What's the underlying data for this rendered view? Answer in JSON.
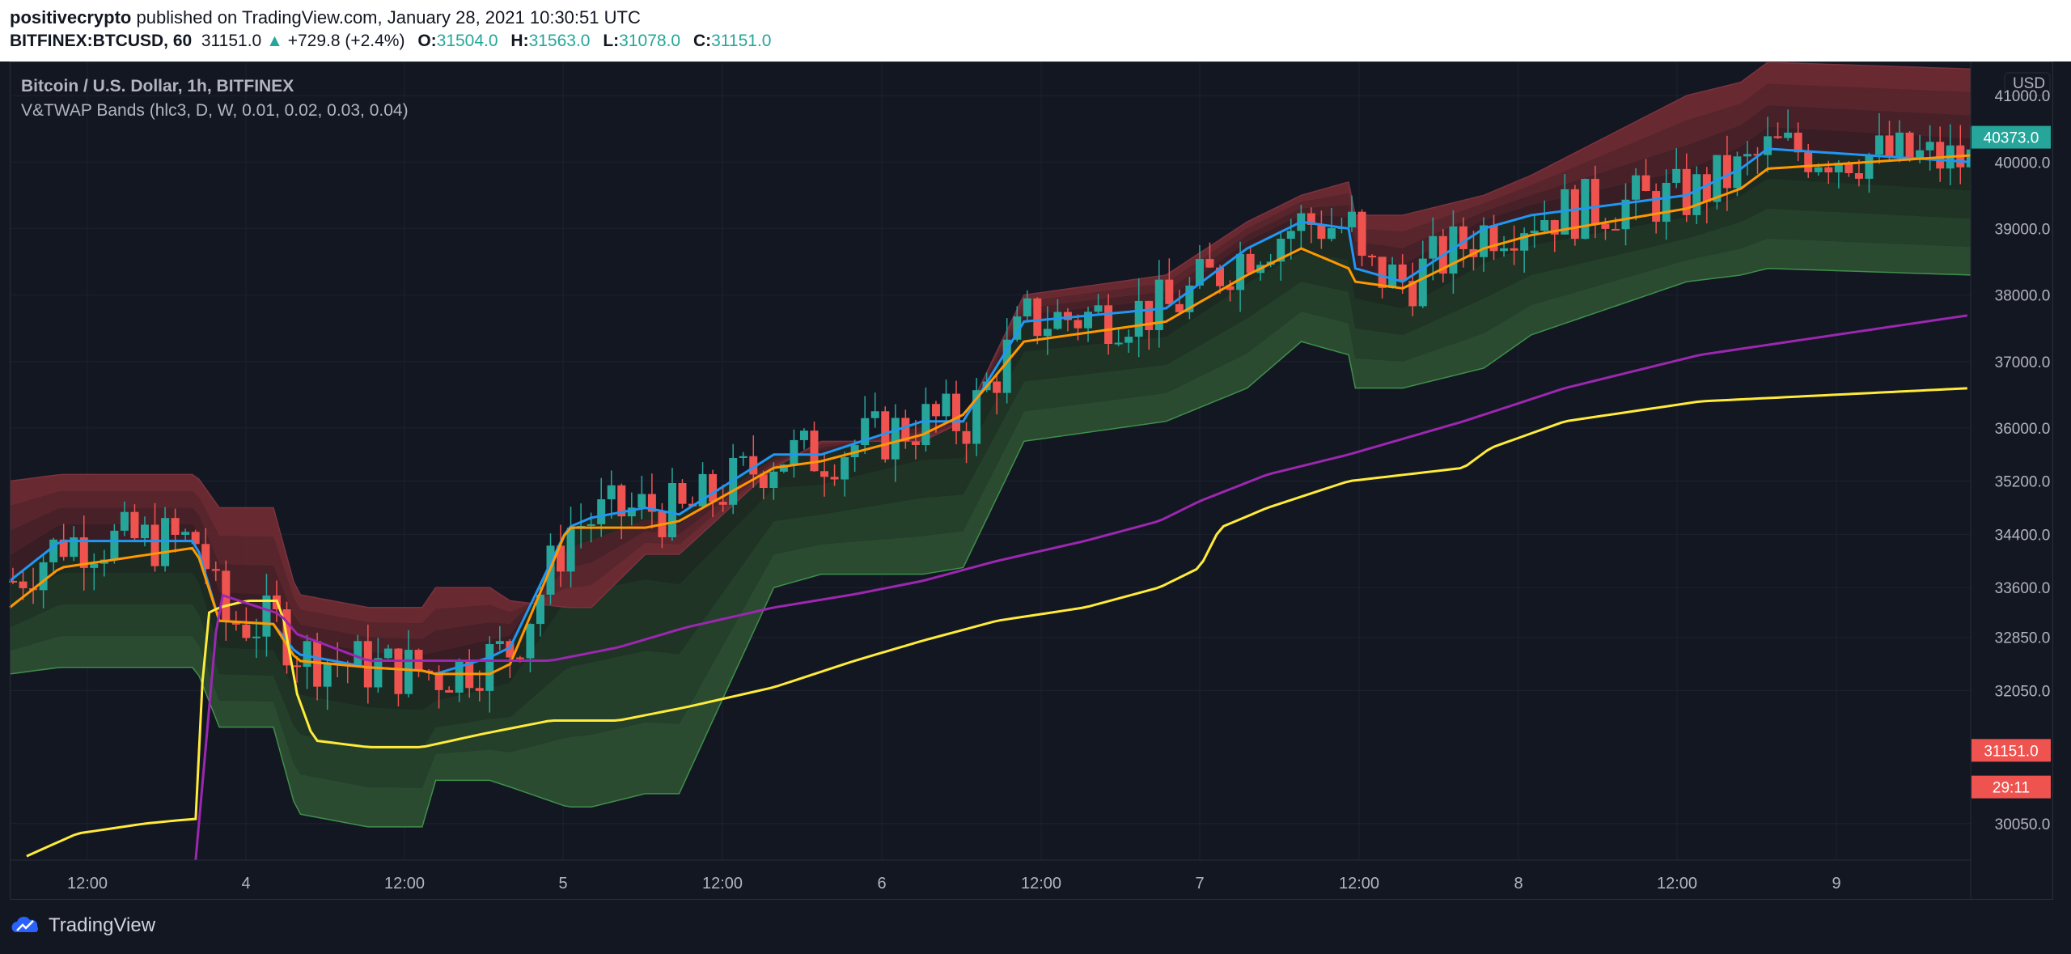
{
  "header": {
    "author": "positivecrypto",
    "published_text": "published on TradingView.com, January 28, 2021 10:30:51 UTC",
    "symbol": "BITFINEX:BTCUSD, 60",
    "last": "31151.0",
    "change_arrow": "▲",
    "change": "+729.8 (+2.4%)",
    "o_label": "O:",
    "o_value": "31504.0",
    "h_label": "H:",
    "h_value": "31563.0",
    "l_label": "L:",
    "l_value": "31078.0",
    "c_label": "C:",
    "c_value": "31151.0"
  },
  "legend": {
    "line1": "Bitcoin / U.S. Dollar, 1h, BITFINEX",
    "line2": "V&TWAP Bands (hlc3, D, W, 0.01, 0.02, 0.03, 0.04)"
  },
  "footer": {
    "brand": "TradingView"
  },
  "colors": {
    "background": "#131722",
    "up": "#26a69a",
    "down": "#ef5350",
    "vwap_blue": "#2196f3",
    "twap_orange": "#ff9800",
    "weekly_yellow": "#ffeb3b",
    "weekly_purple": "#9c27b0",
    "band_red": "#8b2e3a",
    "band_green": "#2e7d32"
  },
  "chart_data": {
    "type": "candlestick",
    "currency": "USD",
    "y_ticks": [
      "41000.0",
      "40000.0",
      "39000.0",
      "38000.0",
      "37000.0",
      "36000.0",
      "35200.0",
      "34400.0",
      "33600.0",
      "32850.0",
      "32050.0",
      "30050.0"
    ],
    "ylim": [
      29500,
      41500
    ],
    "x_ticks": [
      "12:00",
      "4",
      "12:00",
      "5",
      "12:00",
      "6",
      "12:00",
      "7",
      "12:00",
      "8",
      "12:00",
      "9"
    ],
    "price_labels": [
      {
        "text": "40373.0",
        "color": "#26a69a",
        "value": 40373
      },
      {
        "text": "31151.0",
        "color": "#ef5350",
        "value": 31151
      },
      {
        "text": "29:11",
        "color": "#ef5350",
        "value": 30600
      }
    ],
    "series": [
      {
        "name": "daily_vwap",
        "color": "#2196f3",
        "anchors": [
          [
            0,
            33700
          ],
          [
            15,
            34300
          ],
          [
            55,
            34300
          ],
          [
            62,
            33100
          ],
          [
            78,
            33050
          ],
          [
            85,
            32600
          ],
          [
            106,
            32400
          ],
          [
            122,
            32350
          ],
          [
            126,
            32300
          ],
          [
            142,
            32550
          ],
          [
            148,
            32700
          ],
          [
            165,
            34500
          ],
          [
            172,
            34650
          ],
          [
            188,
            34800
          ],
          [
            198,
            34700
          ],
          [
            226,
            35600
          ],
          [
            240,
            35600
          ],
          [
            270,
            36100
          ],
          [
            282,
            36100
          ],
          [
            300,
            37600
          ],
          [
            342,
            37800
          ],
          [
            366,
            38700
          ],
          [
            382,
            39100
          ],
          [
            396,
            39000
          ],
          [
            398,
            38400
          ],
          [
            412,
            38200
          ],
          [
            436,
            39000
          ],
          [
            450,
            39200
          ],
          [
            496,
            39500
          ],
          [
            512,
            39900
          ],
          [
            520,
            40200
          ],
          [
            580,
            40000
          ]
        ]
      },
      {
        "name": "daily_twap",
        "color": "#ff9800",
        "anchors": [
          [
            0,
            33300
          ],
          [
            15,
            33900
          ],
          [
            55,
            34200
          ],
          [
            62,
            33100
          ],
          [
            78,
            33050
          ],
          [
            85,
            32500
          ],
          [
            106,
            32400
          ],
          [
            122,
            32350
          ],
          [
            126,
            32300
          ],
          [
            142,
            32300
          ],
          [
            148,
            32450
          ],
          [
            165,
            34500
          ],
          [
            172,
            34500
          ],
          [
            188,
            34500
          ],
          [
            198,
            34600
          ],
          [
            226,
            35400
          ],
          [
            240,
            35500
          ],
          [
            270,
            35900
          ],
          [
            282,
            36200
          ],
          [
            300,
            37300
          ],
          [
            342,
            37600
          ],
          [
            366,
            38300
          ],
          [
            382,
            38700
          ],
          [
            396,
            38400
          ],
          [
            398,
            38200
          ],
          [
            412,
            38100
          ],
          [
            436,
            38700
          ],
          [
            450,
            38900
          ],
          [
            496,
            39300
          ],
          [
            512,
            39600
          ],
          [
            520,
            39900
          ],
          [
            580,
            40100
          ]
        ]
      },
      {
        "name": "weekly_twap",
        "color": "#ffeb3b",
        "anchors": [
          [
            5,
            29560
          ],
          [
            20,
            29900
          ],
          [
            40,
            30050
          ],
          [
            50,
            30100
          ],
          [
            55,
            30120
          ],
          [
            58,
            33200
          ],
          [
            62,
            33300
          ],
          [
            70,
            33400
          ],
          [
            80,
            33400
          ],
          [
            85,
            32000
          ],
          [
            90,
            31300
          ],
          [
            106,
            31200
          ],
          [
            122,
            31200
          ],
          [
            140,
            31400
          ],
          [
            160,
            31600
          ],
          [
            180,
            31600
          ],
          [
            200,
            31800
          ],
          [
            226,
            32100
          ],
          [
            250,
            32500
          ],
          [
            270,
            32800
          ],
          [
            292,
            33100
          ],
          [
            318,
            33300
          ],
          [
            340,
            33600
          ],
          [
            352,
            33900
          ],
          [
            358,
            34500
          ],
          [
            372,
            34800
          ],
          [
            396,
            35200
          ],
          [
            430,
            35400
          ],
          [
            438,
            35700
          ],
          [
            460,
            36100
          ],
          [
            500,
            36400
          ],
          [
            580,
            36600
          ]
        ]
      },
      {
        "name": "weekly_vwap",
        "color": "#9c27b0",
        "anchors": [
          [
            55,
            29500
          ],
          [
            62,
            33500
          ],
          [
            80,
            33200
          ],
          [
            85,
            32900
          ],
          [
            106,
            32500
          ],
          [
            122,
            32500
          ],
          [
            140,
            32500
          ],
          [
            160,
            32500
          ],
          [
            180,
            32700
          ],
          [
            200,
            33000
          ],
          [
            226,
            33300
          ],
          [
            250,
            33500
          ],
          [
            270,
            33700
          ],
          [
            292,
            34000
          ],
          [
            318,
            34300
          ],
          [
            340,
            34600
          ],
          [
            352,
            34900
          ],
          [
            372,
            35300
          ],
          [
            396,
            35600
          ],
          [
            430,
            36100
          ],
          [
            460,
            36600
          ],
          [
            500,
            37100
          ],
          [
            580,
            37700
          ]
        ]
      }
    ],
    "bands": [
      {
        "name": "band_upper_4",
        "color": "#8b2e3a",
        "anchors": [
          [
            0,
            35200
          ],
          [
            15,
            35300
          ],
          [
            55,
            35300
          ],
          [
            62,
            34800
          ],
          [
            78,
            34800
          ],
          [
            85,
            33500
          ],
          [
            106,
            33300
          ],
          [
            122,
            33300
          ],
          [
            126,
            33600
          ],
          [
            142,
            33600
          ],
          [
            148,
            33400
          ],
          [
            165,
            33300
          ],
          [
            172,
            33300
          ],
          [
            188,
            34100
          ],
          [
            198,
            34100
          ],
          [
            226,
            35400
          ],
          [
            240,
            35800
          ],
          [
            270,
            35800
          ],
          [
            282,
            36100
          ],
          [
            300,
            38000
          ],
          [
            342,
            38300
          ],
          [
            366,
            39100
          ],
          [
            382,
            39500
          ],
          [
            396,
            39700
          ],
          [
            398,
            39200
          ],
          [
            412,
            39200
          ],
          [
            436,
            39500
          ],
          [
            450,
            39800
          ],
          [
            496,
            41000
          ],
          [
            512,
            41200
          ],
          [
            520,
            41500
          ],
          [
            580,
            41400
          ]
        ]
      },
      {
        "name": "band_lower_4",
        "color": "#2e7d32",
        "anchors": [
          [
            0,
            32300
          ],
          [
            15,
            32400
          ],
          [
            55,
            32400
          ],
          [
            62,
            31500
          ],
          [
            78,
            31500
          ],
          [
            85,
            30200
          ],
          [
            106,
            30000
          ],
          [
            122,
            30000
          ],
          [
            126,
            30700
          ],
          [
            142,
            30700
          ],
          [
            148,
            30600
          ],
          [
            165,
            30300
          ],
          [
            172,
            30300
          ],
          [
            188,
            30500
          ],
          [
            198,
            30500
          ],
          [
            226,
            33600
          ],
          [
            240,
            33800
          ],
          [
            270,
            33800
          ],
          [
            282,
            33900
          ],
          [
            300,
            35800
          ],
          [
            342,
            36100
          ],
          [
            366,
            36600
          ],
          [
            382,
            37300
          ],
          [
            396,
            37100
          ],
          [
            398,
            36600
          ],
          [
            412,
            36600
          ],
          [
            436,
            36900
          ],
          [
            450,
            37400
          ],
          [
            496,
            38200
          ],
          [
            512,
            38300
          ],
          [
            520,
            38400
          ],
          [
            580,
            38300
          ]
        ]
      }
    ]
  }
}
